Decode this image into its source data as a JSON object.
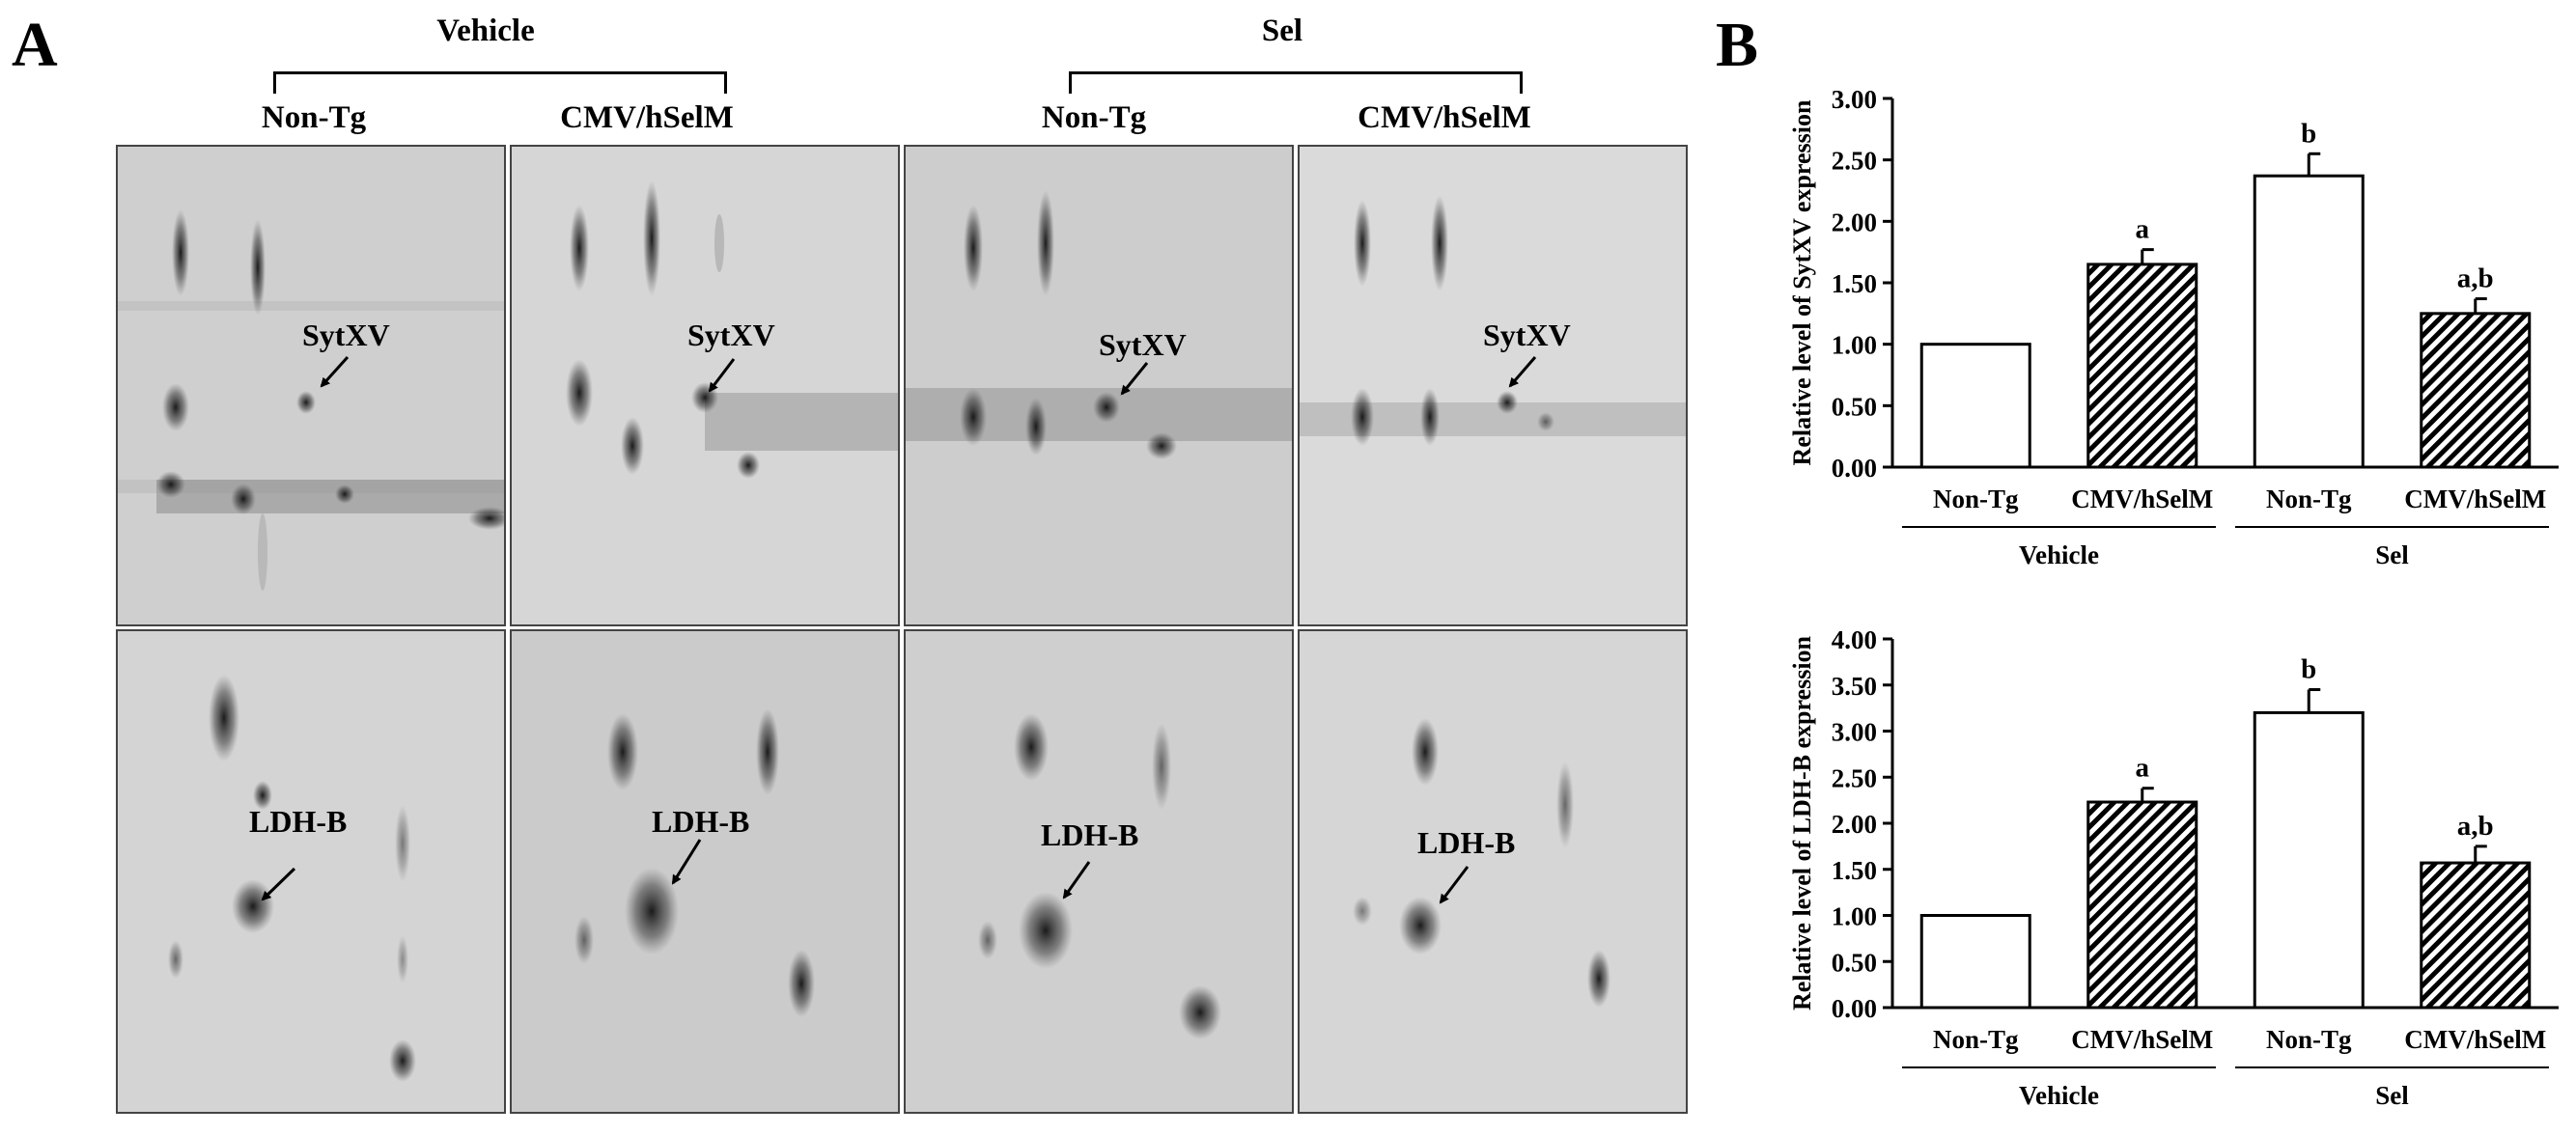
{
  "panel_a": {
    "letter": "A",
    "groups": [
      {
        "label": "Vehicle",
        "subgroups": [
          "Non-Tg",
          "CMV/hSelM"
        ]
      },
      {
        "label": "Sel",
        "subgroups": [
          "Non-Tg",
          "CMV/hSelM"
        ]
      }
    ],
    "rows": [
      {
        "label": "SytXV"
      },
      {
        "label": "LDH-B"
      }
    ]
  },
  "panel_b": {
    "letter": "B"
  },
  "chart_data": [
    {
      "type": "bar",
      "ylabel": "Relative level of SytXV expression",
      "ylim": [
        0,
        3.0
      ],
      "yticks": [
        "0.00",
        "0.50",
        "1.00",
        "1.50",
        "2.00",
        "2.50",
        "3.00"
      ],
      "categories": [
        "Non-Tg",
        "CMV/hSelM",
        "Non-Tg",
        "CMV/hSelM"
      ],
      "groups": [
        {
          "label": "Vehicle",
          "span": [
            0,
            1
          ]
        },
        {
          "label": "Sel",
          "span": [
            2,
            3
          ]
        }
      ],
      "values": [
        1.0,
        1.65,
        2.37,
        1.25
      ],
      "errors": [
        0,
        0.12,
        0.18,
        0.12
      ],
      "annotations": [
        "",
        "a",
        "b",
        "a,b"
      ],
      "fill": [
        "open",
        "hatched",
        "open",
        "hatched"
      ]
    },
    {
      "type": "bar",
      "ylabel": "Relative level of LDH-B expression",
      "ylim": [
        0,
        4.0
      ],
      "yticks": [
        "0.00",
        "0.50",
        "1.00",
        "1.50",
        "2.00",
        "2.50",
        "3.00",
        "3.50",
        "4.00"
      ],
      "categories": [
        "Non-Tg",
        "CMV/hSelM",
        "Non-Tg",
        "CMV/hSelM"
      ],
      "groups": [
        {
          "label": "Vehicle",
          "span": [
            0,
            1
          ]
        },
        {
          "label": "Sel",
          "span": [
            2,
            3
          ]
        }
      ],
      "values": [
        1.0,
        2.23,
        3.2,
        1.57
      ],
      "errors": [
        0,
        0.15,
        0.25,
        0.18
      ],
      "annotations": [
        "",
        "a",
        "b",
        "a,b"
      ],
      "fill": [
        "open",
        "hatched",
        "open",
        "hatched"
      ]
    }
  ]
}
